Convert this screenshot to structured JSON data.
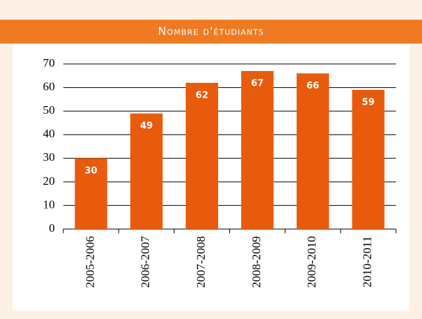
{
  "chart_data": {
    "type": "bar",
    "title": "Nombre d'étudiants",
    "categories": [
      "2005-2006",
      "2006-2007",
      "2007-2008",
      "2008-2009",
      "2009-2010",
      "2010-2011"
    ],
    "values": [
      30,
      49,
      62,
      67,
      66,
      59
    ],
    "color": "#e85a0c",
    "ylim": [
      0,
      70
    ],
    "yticks": [
      0,
      10,
      20,
      30,
      40,
      50,
      60,
      70
    ],
    "grid": true
  }
}
